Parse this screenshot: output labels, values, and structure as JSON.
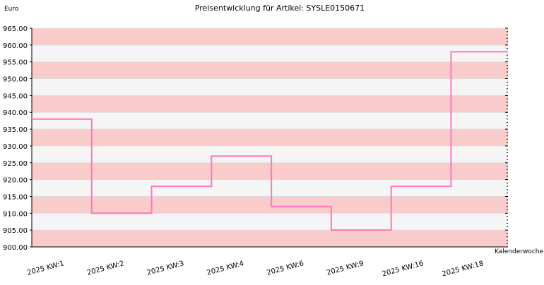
{
  "chart_data": {
    "type": "line",
    "step": true,
    "title": "Preisentwicklung für Artikel: SYSLE0150671",
    "ylabel": "Euro",
    "xlabel": "Kalenderwoche",
    "ylim": [
      900,
      965
    ],
    "ytick_step": 5,
    "ytick_labels": [
      "900.00",
      "905.00",
      "910.00",
      "915.00",
      "920.00",
      "925.00",
      "930.00",
      "935.00",
      "940.00",
      "945.00",
      "950.00",
      "955.00",
      "960.00",
      "965.00"
    ],
    "categories": [
      "2025 KW:1",
      "2025 KW:2",
      "2025 KW:3",
      "2025 KW:4",
      "2025 KW:6",
      "2025 KW:9",
      "2025 KW:16",
      "2025 KW:18"
    ],
    "values": [
      938,
      910,
      918,
      927,
      912,
      905,
      918,
      958
    ],
    "grid": "alternating horizontal bands",
    "colors": {
      "line": "#ff77bb",
      "band_a": "#f9cbcb",
      "band_b": "#f5f5f5",
      "axis": "#000000",
      "gridline": "#dddddd"
    }
  }
}
